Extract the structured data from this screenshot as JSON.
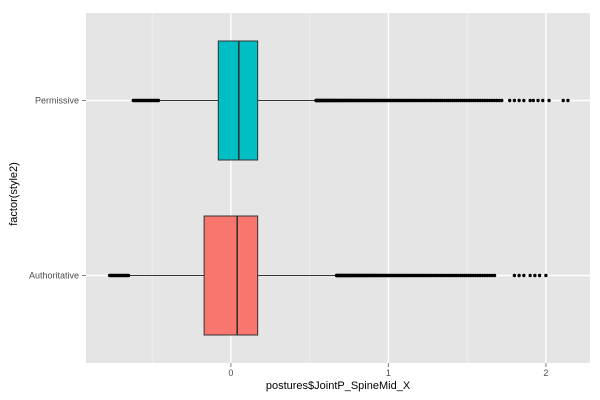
{
  "chart_data": {
    "type": "boxplot",
    "orientation": "horizontal",
    "xlabel": "postures$JointP_SpineMid_X",
    "ylabel": "factor(style2)",
    "xlim": [
      -0.92,
      2.28
    ],
    "x_ticks": [
      0,
      1,
      2
    ],
    "categories": [
      "Authoritative",
      "Permissive"
    ],
    "grid": true,
    "colors": {
      "panel_bg": "#e5e5e5",
      "grid_major": "#ffffff",
      "grid_minor": "#f2f2f2",
      "Authoritative": "#f8766d",
      "Permissive": "#00bfc4",
      "outline": "#333333",
      "outlier": "#000000"
    },
    "boxes": [
      {
        "category": "Authoritative",
        "whisker_low": -0.65,
        "q1": -0.17,
        "median": 0.04,
        "q3": 0.17,
        "whisker_high": 0.66,
        "outlier_low_range": [
          -0.77,
          -0.65
        ],
        "outlier_high_dense_range": [
          0.67,
          1.68
        ],
        "outlier_high_sparse": [
          1.8,
          1.83,
          1.86,
          1.9,
          1.93,
          1.96,
          2.0
        ]
      },
      {
        "category": "Permissive",
        "whisker_low": -0.46,
        "q1": -0.08,
        "median": 0.05,
        "q3": 0.17,
        "whisker_high": 0.53,
        "outlier_low_range": [
          -0.62,
          -0.46
        ],
        "outlier_high_dense_range": [
          0.54,
          1.72
        ],
        "outlier_high_sparse": [
          1.77,
          1.8,
          1.83,
          1.86,
          1.9,
          1.92,
          1.95,
          1.98,
          2.02,
          2.11,
          2.14
        ]
      }
    ]
  }
}
